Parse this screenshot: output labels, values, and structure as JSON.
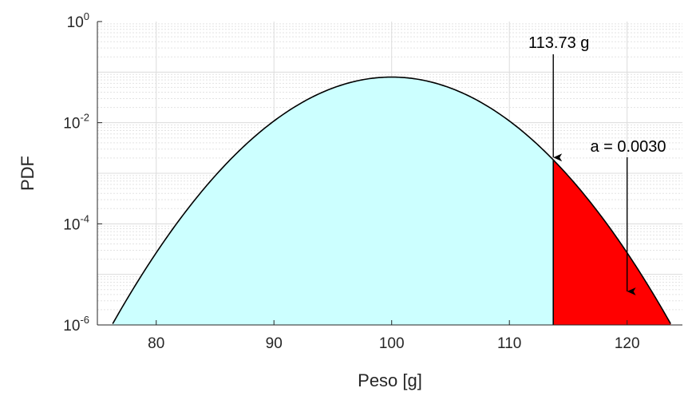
{
  "chart_data": {
    "type": "area",
    "xlabel": "Peso [g]",
    "ylabel": "PDF",
    "xlim": [
      75,
      124.7
    ],
    "ylim_log10": [
      -6,
      0
    ],
    "yscale": "log",
    "grid": true,
    "minor_grid": true,
    "xticks": [
      80,
      90,
      100,
      110,
      120
    ],
    "yticks": [
      {
        "base": "10",
        "exp": "0",
        "value": 1
      },
      {
        "base": "10",
        "exp": "-2",
        "value": 0.01
      },
      {
        "base": "10",
        "exp": "-4",
        "value": 0.0001
      },
      {
        "base": "10",
        "exp": "-6",
        "value": 1e-06
      }
    ],
    "distribution": {
      "family": "normal",
      "mean": 100,
      "std": 5
    },
    "curve_x_range": [
      76.3,
      123.7
    ],
    "threshold": 113.73,
    "regions": [
      {
        "from": 76.3,
        "to": 113.73,
        "color": "#ccffff"
      },
      {
        "from": 113.73,
        "to": 123.7,
        "color": "#ff0000"
      }
    ],
    "annotations": [
      {
        "text": "113.73 g",
        "target_x": 113.73
      },
      {
        "text": "a = 0.0030",
        "target_x": 120
      }
    ],
    "colors": {
      "curve": "#000000",
      "grid": "#dcdcdc",
      "axis": "#262626"
    }
  }
}
